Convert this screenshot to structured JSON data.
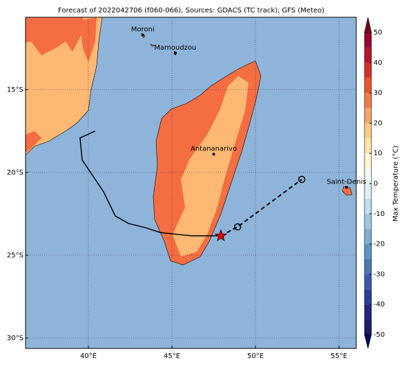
{
  "chart_data": {
    "type": "map",
    "title": "Forecast of 2022042706 (f060-066), Sources: GDACS (TC track), GFS (Meteo)",
    "xlim": [
      36.24,
      56.03
    ],
    "ylim": [
      -30.63,
      -10.63
    ],
    "xticks": [
      {
        "value": 40,
        "label": "40°E"
      },
      {
        "value": 45,
        "label": "45°E"
      },
      {
        "value": 50,
        "label": "50°E"
      },
      {
        "value": 55,
        "label": "55°E"
      }
    ],
    "yticks": [
      {
        "value": -15,
        "label": "15°S"
      },
      {
        "value": -20,
        "label": "20°S"
      },
      {
        "value": -25,
        "label": "25°S"
      },
      {
        "value": -30,
        "label": "30°S"
      }
    ],
    "grid": true,
    "cities": [
      {
        "name": "Moroni",
        "lon": 43.25,
        "lat": -11.7
      },
      {
        "name": "Mamoudzou",
        "lon": 45.2,
        "lat": -12.8
      },
      {
        "name": "Antananarivo",
        "lon": 47.5,
        "lat": -18.9
      },
      {
        "name": "Saint-Denis",
        "lon": 55.45,
        "lat": -20.9
      }
    ],
    "track": {
      "color": "#000000",
      "lon": [
        40.41,
        39.5,
        39.63,
        40.91,
        41.61,
        42.4,
        43.39,
        44.3,
        46.16,
        47.93
      ],
      "lat": [
        -17.5,
        -17.92,
        -19.25,
        -21.17,
        -22.63,
        -23.08,
        -23.33,
        -23.63,
        -23.83,
        -23.83
      ]
    },
    "forecast": {
      "color": "#000000",
      "lon": [
        47.93,
        48.93,
        52.77
      ],
      "lat": [
        -23.83,
        -23.29,
        -20.42
      ]
    },
    "colorbar": {
      "label": "Max Temperature (°C)",
      "levels": [
        -50,
        -45,
        -40,
        -35,
        -30,
        -25,
        -20,
        -15,
        -10,
        -5,
        0,
        5,
        10,
        15,
        20,
        25,
        30,
        35,
        40,
        45,
        50
      ],
      "colors": [
        "#1b1b6b",
        "#23257f",
        "#2c3d9b",
        "#3a5aa8",
        "#4a78b7",
        "#5f93c6",
        "#7fafd3",
        "#9fc8e0",
        "#bedfec",
        "#dcf0f6",
        "#f3fbf4",
        "#fff7d6",
        "#fee5a8",
        "#fecb85",
        "#f6a46d",
        "#f37a4a",
        "#e9552f",
        "#d73027",
        "#b8142c",
        "#9a0030"
      ],
      "under_color": "#0a0a5a",
      "over_color": "#7a0020",
      "ticks": [
        -50,
        -40,
        -30,
        -20,
        -10,
        0,
        10,
        20,
        30,
        40,
        50
      ]
    }
  }
}
